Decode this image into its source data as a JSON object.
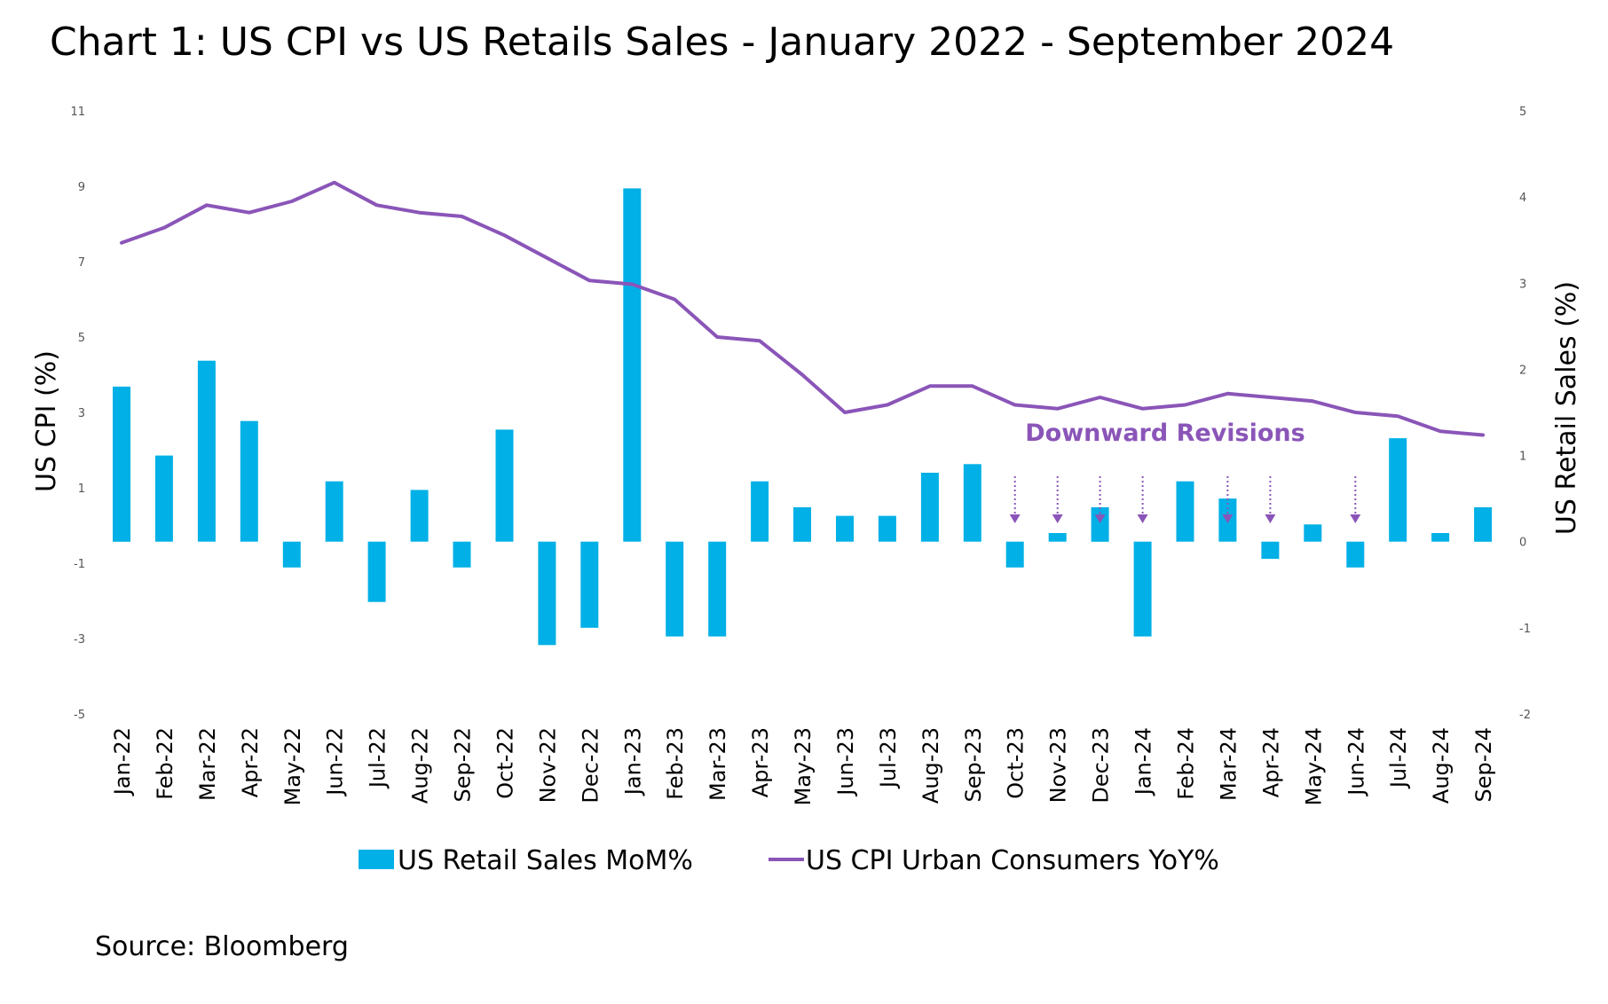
{
  "chart_data": {
    "type": "bar",
    "title": "Chart 1: US CPI vs US Retails Sales - January 2022 - September 2024",
    "categories": [
      "Jan-22",
      "Feb-22",
      "Mar-22",
      "Apr-22",
      "May-22",
      "Jun-22",
      "Jul-22",
      "Aug-22",
      "Sep-22",
      "Oct-22",
      "Nov-22",
      "Dec-22",
      "Jan-23",
      "Feb-23",
      "Mar-23",
      "Apr-23",
      "May-23",
      "Jun-23",
      "Jul-23",
      "Aug-23",
      "Sep-23",
      "Oct-23",
      "Nov-23",
      "Dec-23",
      "Jan-24",
      "Feb-24",
      "Mar-24",
      "Apr-24",
      "May-24",
      "Jun-24",
      "Jul-24",
      "Aug-24",
      "Sep-24"
    ],
    "series": [
      {
        "name": "US Retail Sales MoM%",
        "type": "bar",
        "axis": "right",
        "color": "#00b0e6",
        "values": [
          1.8,
          1.0,
          2.1,
          1.4,
          -0.3,
          0.7,
          -0.7,
          0.6,
          -0.3,
          1.3,
          -1.2,
          -1.0,
          4.1,
          -1.1,
          -1.1,
          0.7,
          0.4,
          0.3,
          0.3,
          0.8,
          0.9,
          -0.3,
          0.1,
          0.4,
          -1.1,
          0.7,
          0.5,
          -0.2,
          0.2,
          -0.3,
          1.2,
          0.1,
          0.4
        ]
      },
      {
        "name": "US CPI Urban Consumers YoY%",
        "type": "line",
        "axis": "left",
        "color": "#8a55b8",
        "values": [
          7.5,
          7.9,
          8.5,
          8.3,
          8.6,
          9.1,
          8.5,
          8.3,
          8.2,
          7.7,
          7.1,
          6.5,
          6.4,
          6.0,
          5.0,
          4.9,
          4.0,
          3.0,
          3.2,
          3.7,
          3.7,
          3.2,
          3.1,
          3.4,
          3.1,
          3.2,
          3.5,
          3.4,
          3.3,
          3.0,
          2.9,
          2.5,
          2.4
        ]
      }
    ],
    "y_left": {
      "label": "US CPI (%)",
      "ylim": [
        -5,
        11
      ],
      "ticks": [
        "-5",
        "-3",
        "-1",
        "1",
        "3",
        "5",
        "7",
        "9",
        "11"
      ]
    },
    "y_right": {
      "label": "US Retail Sales (%)",
      "ylim": [
        -2,
        5
      ],
      "ticks": [
        "-2",
        "-1",
        "0",
        "1",
        "2",
        "3",
        "4",
        "5"
      ]
    },
    "grid": false,
    "legend": {
      "position": "bottom",
      "items": [
        "US Retail Sales MoM%",
        "US CPI Urban Consumers YoY%"
      ]
    },
    "annotation": {
      "text": "Downward Revisions",
      "color": "#8a55b8",
      "arrow_months": [
        "Oct-23",
        "Nov-23",
        "Dec-23",
        "Jan-24",
        "Mar-24",
        "Apr-24",
        "Jun-24"
      ]
    }
  },
  "source": "Source: Bloomberg"
}
